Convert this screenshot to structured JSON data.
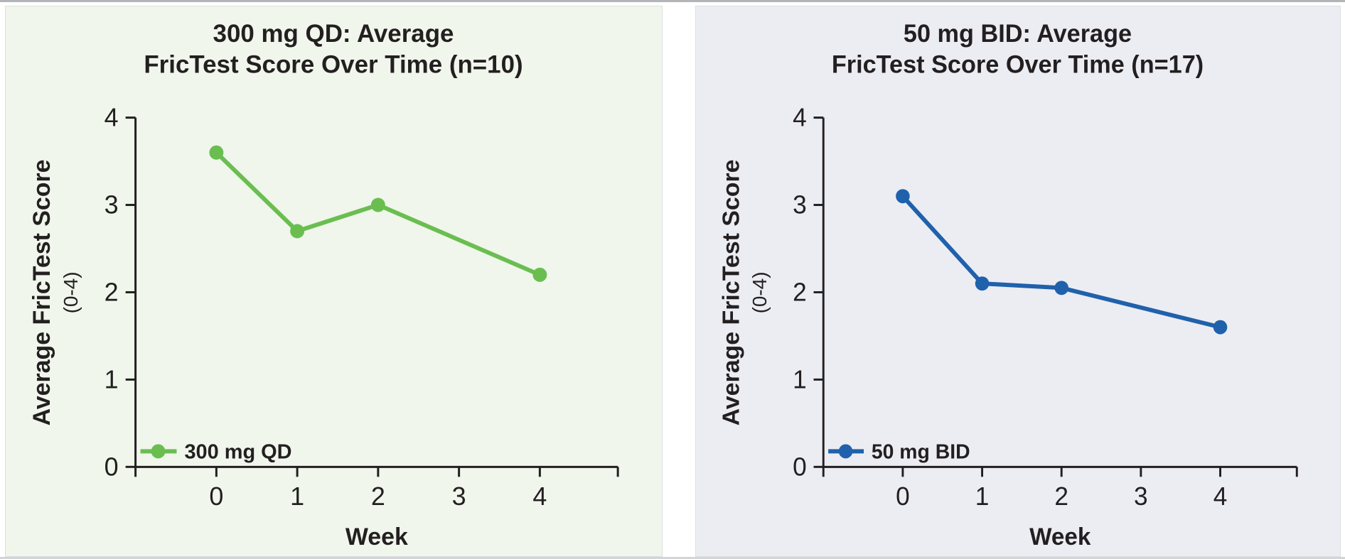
{
  "colors": {
    "text": "#231f20",
    "axis": "#231f20",
    "left_panel_background": "#f0f6ec",
    "right_panel_background": "#ecedf3",
    "green_series": "#6abe50",
    "blue_series": "#2061ac"
  },
  "chart_data": [
    {
      "type": "line",
      "title_line1": "300 mg QD: Average",
      "title_line2": "FricTest Score Over Time (n=10)",
      "legend_label": "300 mg QD",
      "xlabel": "Week",
      "ylabel": "Average FricTest Score",
      "ylabel_sub": "(0-4)",
      "series_color": "#6abe50",
      "background": "#f0f6ec",
      "x": [
        0,
        1,
        2,
        4
      ],
      "values": [
        3.6,
        2.7,
        3.0,
        2.2
      ],
      "x_ticks": [
        0,
        1,
        2,
        3,
        4
      ],
      "y_ticks": [
        0,
        1,
        2,
        3,
        4
      ],
      "ylim": [
        0,
        4
      ],
      "grid": false,
      "legend_position": "bottom-left"
    },
    {
      "type": "line",
      "title_line1": "50 mg BID: Average",
      "title_line2": "FricTest Score Over Time (n=17)",
      "legend_label": "50 mg BID",
      "xlabel": "Week",
      "ylabel": "Average FricTest Score",
      "ylabel_sub": "(0-4)",
      "series_color": "#2061ac",
      "background": "#ecedf3",
      "x": [
        0,
        1,
        2,
        4
      ],
      "values": [
        3.1,
        2.1,
        2.05,
        1.6
      ],
      "x_ticks": [
        0,
        1,
        2,
        3,
        4
      ],
      "y_ticks": [
        0,
        1,
        2,
        3,
        4
      ],
      "ylim": [
        0,
        4
      ],
      "grid": false,
      "legend_position": "bottom-left"
    }
  ]
}
